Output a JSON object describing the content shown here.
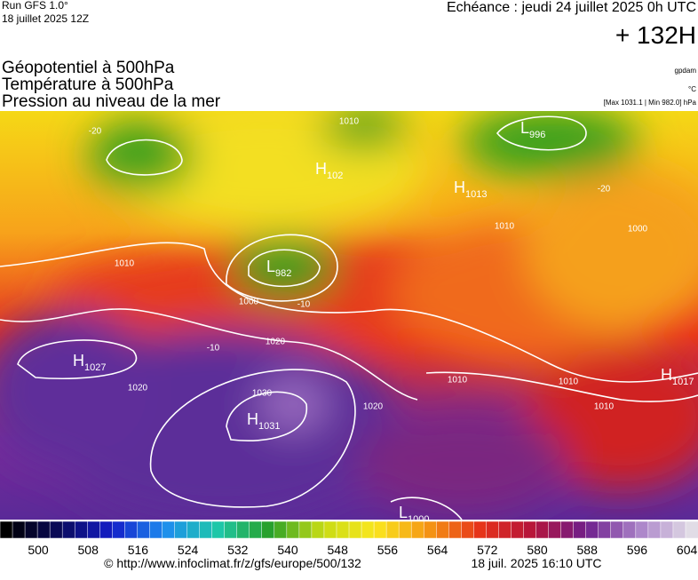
{
  "header": {
    "run": "Run GFS 1.0°",
    "run_date": "18 juillet 2025 12Z",
    "forecast": "Echéance : jeudi 24 juillet 2025 0h UTC",
    "lead": "+ 132H"
  },
  "fields": [
    "Géopotentiel à 500hPa",
    "Température à 500hPa",
    "Pression au niveau de la mer"
  ],
  "units": [
    "gpdam",
    "°C",
    "[Max 1031.1 | Min 982.0] hPa"
  ],
  "map": {
    "centers": [
      {
        "type": "H",
        "value": "1027"
      },
      {
        "type": "H",
        "value": "1031"
      },
      {
        "type": "L",
        "value": "982"
      },
      {
        "type": "H",
        "value": "1013"
      },
      {
        "type": "L",
        "value": "996"
      },
      {
        "type": "H",
        "value": "1017"
      },
      {
        "type": "L",
        "value": "1000"
      },
      {
        "type": "H",
        "value": "102"
      }
    ],
    "isobar_labels": [
      "1010",
      "1020",
      "1020",
      "1030",
      "1010",
      "1000",
      "1010",
      "1010",
      "1010",
      "1020",
      "1000",
      "1010"
    ],
    "temperature_labels": [
      "-20",
      "-10",
      "-10",
      "-20"
    ]
  },
  "colorbar": {
    "ticks": [
      "500",
      "508",
      "516",
      "524",
      "532",
      "540",
      "548",
      "556",
      "564",
      "572",
      "580",
      "588",
      "596",
      "604"
    ]
  },
  "footer": {
    "source": "© http://www.infoclimat.fr/z/gfs/europe/500/132",
    "timestamp": "18 juil. 2025 16:10 UTC"
  }
}
